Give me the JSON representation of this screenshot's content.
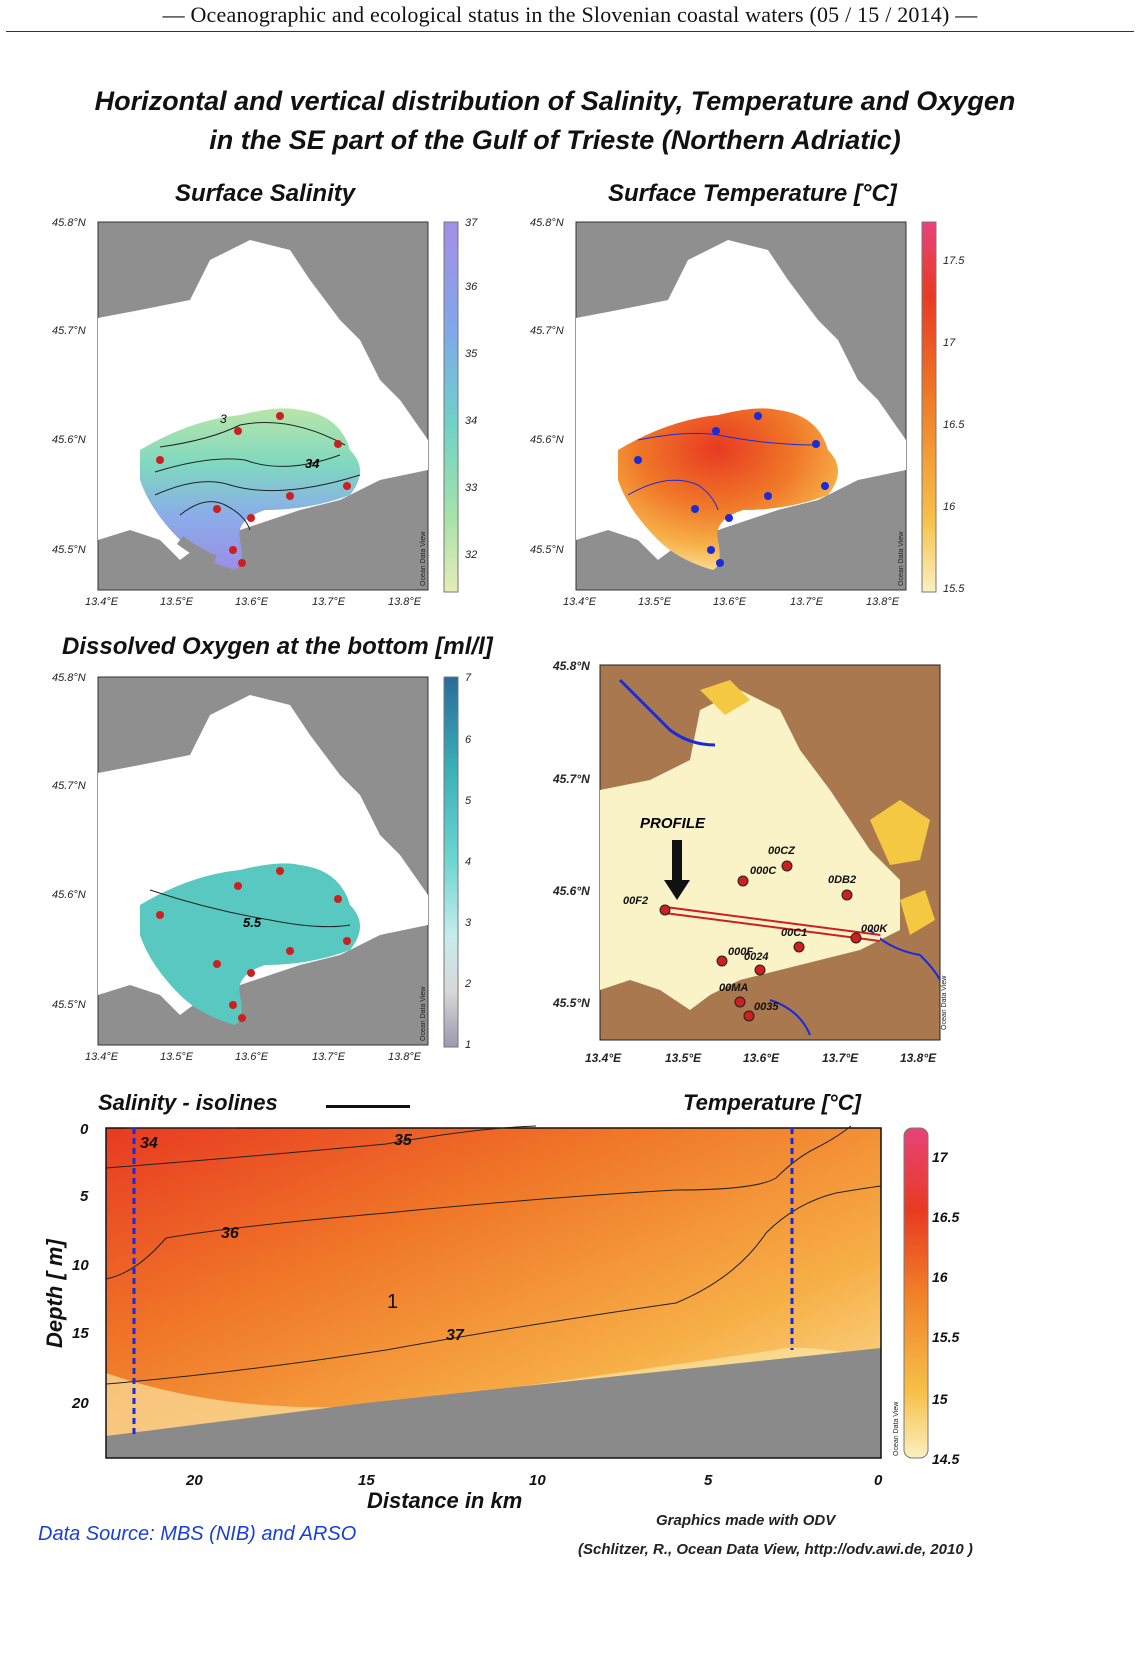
{
  "header": {
    "text": "— Oceanographic and ecological status in the Slovenian coastal waters (05 / 15 / 2014) —"
  },
  "figure": {
    "title_line1": "Horizontal and vertical distribution of Salinity, Temperature and Oxygen",
    "title_line2": "in the SE part of the Gulf of Trieste (Northern Adriatic)",
    "lat_labels": [
      "45.8°N",
      "45.7°N",
      "45.6°N",
      "45.5°N"
    ],
    "lon_labels": [
      "13.4°E",
      "13.5°E",
      "13.6°E",
      "13.7°E",
      "13.8°E"
    ],
    "odv_tag": "Ocean Data View",
    "colors": {
      "land": "#8f8f8f",
      "sea": "#ffffff",
      "station": "#cc1f1f",
      "station_temp": "#1a2bd8",
      "profile_line": "#cc1f1f"
    }
  },
  "panels": {
    "salinity": {
      "title": "Surface Salinity",
      "colorbar_ticks": [
        "37",
        "36",
        "35",
        "34",
        "33",
        "32"
      ],
      "isoline_label": "34",
      "isoline_label2": "3"
    },
    "temperature": {
      "title": "Surface Temperature [°C]",
      "colorbar_ticks": [
        "17.5",
        "17",
        "16.5",
        "16",
        "15.5"
      ]
    },
    "oxygen": {
      "title": "Dissolved Oxygen at the bottom [ml/l]",
      "colorbar_ticks": [
        "7",
        "6",
        "5",
        "4",
        "3",
        "2",
        "1"
      ],
      "isoline_label": "5.5"
    },
    "stations_map": {
      "lat_labels": [
        "45.8°N",
        "45.7°N",
        "45.6°N",
        "45.5°N"
      ],
      "lon_labels": [
        "13.4°E",
        "13.5°E",
        "13.6°E",
        "13.7°E",
        "13.8°E"
      ],
      "profile_label": "PROFILE",
      "stations": [
        "00CZ",
        "000C",
        "0DB2",
        "00F2",
        "000K",
        "00C1",
        "000F",
        "0024",
        "00MA",
        "0035"
      ],
      "colors": {
        "land": "#a9784e",
        "sea": "#faf3c8",
        "urban": "#f5c842",
        "river": "#1a2bd8"
      }
    },
    "section": {
      "legend_isolines": "Salinity - isolines",
      "legend_temperature": "Temperature [°C]",
      "ylabel": "Depth [ m]",
      "xlabel": "Distance in km",
      "y_ticks": [
        "0",
        "5",
        "10",
        "15",
        "20"
      ],
      "x_ticks": [
        "20",
        "15",
        "10",
        "5",
        "0"
      ],
      "isoline_labels": [
        "34",
        "35",
        "36",
        "37"
      ],
      "colorbar_ticks": [
        "17",
        "16.5",
        "16",
        "15.5",
        "15",
        "14.5"
      ],
      "page_number": "1"
    }
  },
  "footer": {
    "data_source": "Data Source: MBS (NIB) and ARSO",
    "credit_line1": "Graphics made with ODV",
    "credit_line2": "(Schlitzer, R., Ocean Data View, http://odv.awi.de, 2010 )"
  }
}
